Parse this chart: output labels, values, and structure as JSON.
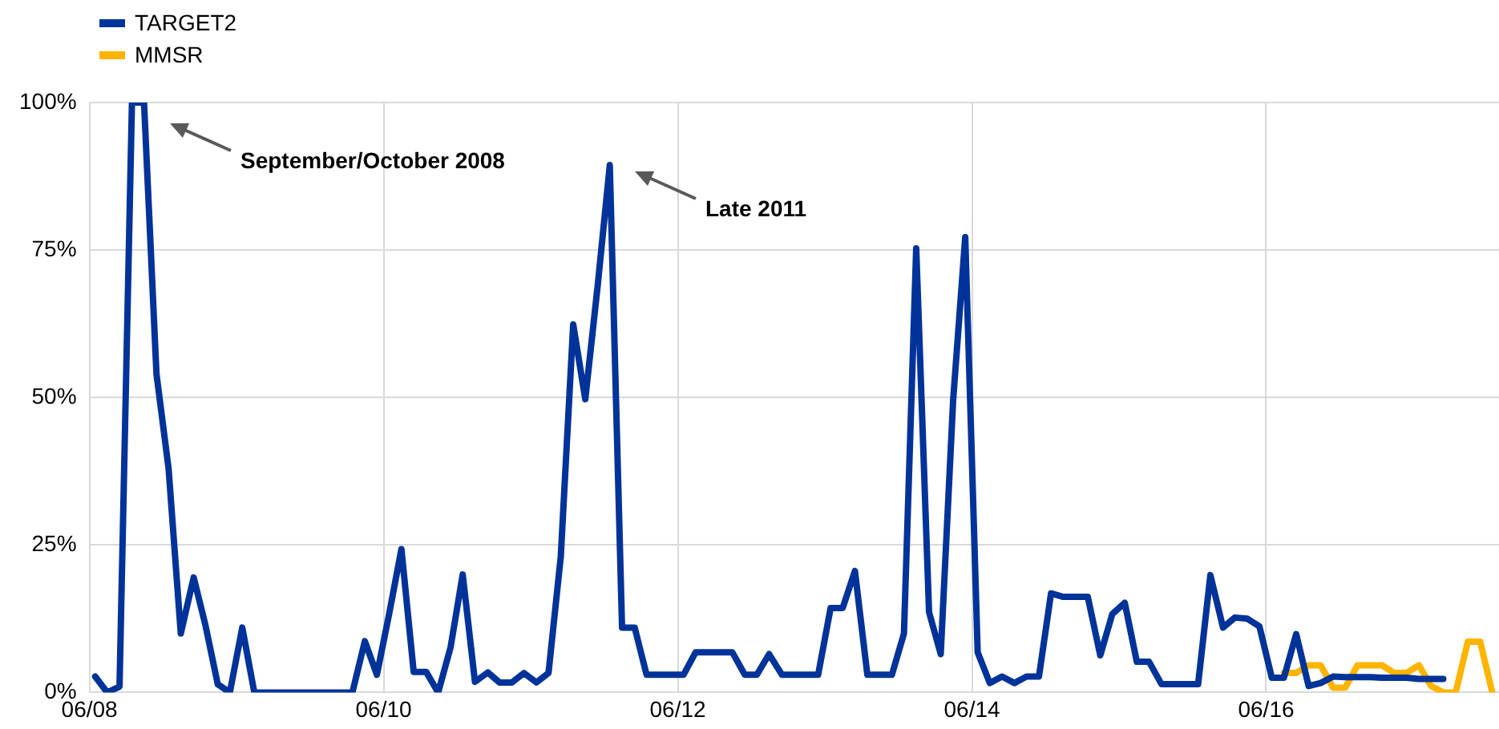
{
  "chart_data": {
    "type": "line",
    "x": [
      "2008-06-15",
      "2008-07-15",
      "2008-08-15",
      "2008-09-15",
      "2008-10-15",
      "2008-11-15",
      "2008-12-15",
      "2009-01-15",
      "2009-02-15",
      "2009-03-15",
      "2009-04-15",
      "2009-05-15",
      "2009-06-15",
      "2009-07-15",
      "2009-08-15",
      "2009-09-15",
      "2009-10-15",
      "2009-11-15",
      "2009-12-15",
      "2010-01-15",
      "2010-02-15",
      "2010-03-15",
      "2010-04-15",
      "2010-05-15",
      "2010-06-15",
      "2010-07-15",
      "2010-08-15",
      "2010-09-15",
      "2010-10-15",
      "2010-11-15",
      "2010-12-15",
      "2011-01-15",
      "2011-02-15",
      "2011-03-15",
      "2011-04-15",
      "2011-05-15",
      "2011-06-15",
      "2011-07-15",
      "2011-08-15",
      "2011-09-15",
      "2011-10-15",
      "2011-11-15",
      "2011-12-15",
      "2012-01-15",
      "2012-02-15",
      "2012-03-15",
      "2012-04-15",
      "2012-05-15",
      "2012-06-15",
      "2012-07-15",
      "2012-08-15",
      "2012-09-15",
      "2012-10-15",
      "2012-11-15",
      "2012-12-15",
      "2013-01-15",
      "2013-02-15",
      "2013-03-15",
      "2013-04-15",
      "2013-05-15",
      "2013-06-15",
      "2013-07-15",
      "2013-08-15",
      "2013-09-15",
      "2013-10-15",
      "2013-11-15",
      "2013-12-15",
      "2014-01-15",
      "2014-02-15",
      "2014-03-15",
      "2014-04-15",
      "2014-05-15",
      "2014-06-15",
      "2014-07-15",
      "2014-08-15",
      "2014-09-15",
      "2014-10-15",
      "2014-11-15",
      "2014-12-15",
      "2015-01-15",
      "2015-02-15",
      "2015-03-15",
      "2015-04-15",
      "2015-05-15",
      "2015-06-15",
      "2015-07-15",
      "2015-08-15",
      "2015-09-15",
      "2015-10-15",
      "2015-11-15",
      "2015-12-15",
      "2016-01-15",
      "2016-02-15",
      "2016-03-15",
      "2016-04-15",
      "2016-05-15",
      "2016-06-15",
      "2016-07-15",
      "2016-08-15",
      "2016-09-15",
      "2016-10-15",
      "2016-11-15",
      "2016-12-15",
      "2017-01-15",
      "2017-02-15",
      "2017-03-15",
      "2017-04-15",
      "2017-05-15",
      "2017-06-15",
      "2017-07-15",
      "2017-08-15"
    ],
    "series": [
      {
        "name": "TARGET2",
        "color": "#003399",
        "values": [
          2.7,
          0,
          1,
          100,
          100,
          54,
          38,
          10,
          19.5,
          11.5,
          1.4,
          0,
          11,
          0,
          0,
          0,
          0,
          0,
          0,
          0,
          0,
          0,
          8.7,
          3,
          13.5,
          24.3,
          3.5,
          3.5,
          0,
          7.7,
          20,
          1.8,
          3.4,
          1.7,
          1.7,
          3.3,
          1.7,
          3.3,
          23,
          62.4,
          49.7,
          69,
          89.4,
          11,
          11,
          3,
          3,
          3,
          3,
          6.8,
          6.8,
          6.8,
          6.8,
          3,
          3,
          6.5,
          3,
          3,
          3,
          3,
          14.3,
          14.3,
          20.6,
          3,
          3,
          3,
          10,
          75.3,
          13.6,
          6.5,
          49.6,
          77.2,
          6.8,
          1.6,
          2.7,
          1.6,
          2.7,
          2.7,
          16.8,
          16.2,
          16.2,
          16.2,
          6.3,
          13.3,
          15.2,
          5.2,
          5.2,
          1.4,
          1.4,
          1.4,
          1.4,
          19.9,
          11,
          12.7,
          12.5,
          11.2,
          2.5,
          2.5,
          9.9,
          1.1,
          1.6,
          2.7,
          2.6,
          2.6,
          2.6,
          2.5,
          2.5,
          2.5,
          2.3,
          2.3,
          2.3
        ]
      },
      {
        "name": "MMSR",
        "color": "#ffb400",
        "x": [
          "2016-07-15",
          "2016-08-15",
          "2016-09-15",
          "2016-10-15",
          "2016-11-15",
          "2016-12-15",
          "2017-01-15",
          "2017-02-15",
          "2017-03-15",
          "2017-04-15",
          "2017-05-15",
          "2017-06-15",
          "2017-07-15",
          "2017-08-15",
          "2017-09-15",
          "2017-10-15",
          "2017-11-15",
          "2017-12-15"
        ],
        "values": [
          3.3,
          3.3,
          4.6,
          4.6,
          0.8,
          0.8,
          4.6,
          4.6,
          4.6,
          3.3,
          3.3,
          4.6,
          1.1,
          0,
          0,
          8.6,
          8.6,
          0
        ]
      }
    ],
    "xlim": [
      "2008-06",
      "2018-01"
    ],
    "xticks": [
      {
        "value": "2008-06",
        "label": "06/08"
      },
      {
        "value": "2010-06",
        "label": "06/10"
      },
      {
        "value": "2012-06",
        "label": "06/12"
      },
      {
        "value": "2014-06",
        "label": "06/14"
      },
      {
        "value": "2016-06",
        "label": "06/16"
      }
    ],
    "ylim": [
      0,
      100
    ],
    "yticks": [
      {
        "value": 0,
        "label": "0%"
      },
      {
        "value": 25,
        "label": "25%"
      },
      {
        "value": 50,
        "label": "50%"
      },
      {
        "value": 75,
        "label": "75%"
      },
      {
        "value": 100,
        "label": "100%"
      }
    ],
    "grid": true,
    "legend": "top left",
    "marker": "none",
    "line_style": "solid",
    "annotations": [
      "September/October 2008",
      "Late 2011"
    ]
  }
}
